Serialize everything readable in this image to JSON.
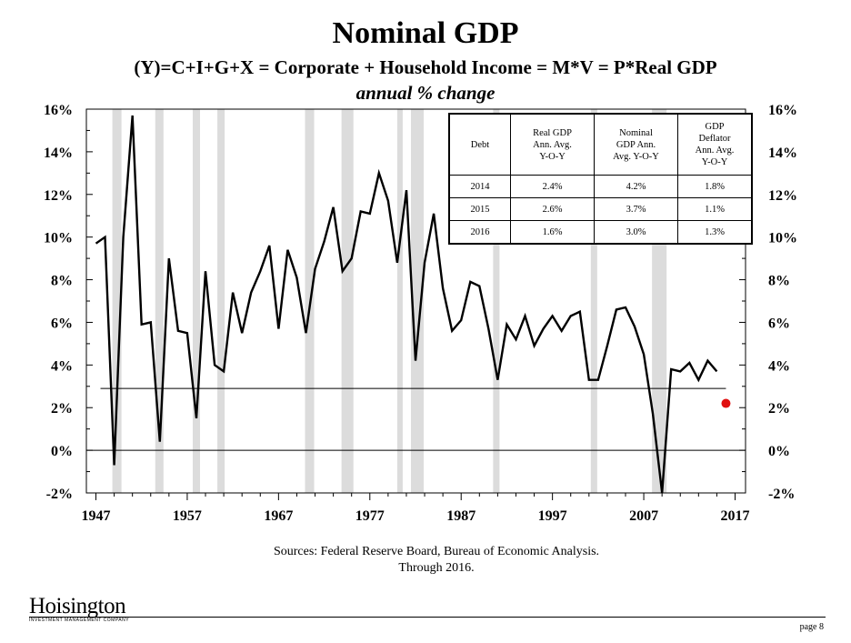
{
  "header": {
    "title": "Nominal GDP",
    "subtitle": "(Y)=C+I+G+X = Corporate + Household Income = M*V = P*Real GDP",
    "subtitle_units": "annual % change"
  },
  "colors": {
    "line": "#000000",
    "recession_shading": "#dcdcdc",
    "projection_dot": "#e01010"
  },
  "summary_table": {
    "headers": [
      "Debt",
      "Real GDP\nAnn. Avg.\nY-O-Y",
      "Nominal\nGDP Ann.\nAvg. Y-O-Y",
      "GDP\nDeflator\nAnn. Avg.\nY-O-Y"
    ],
    "rows": [
      [
        "2014",
        "2.4%",
        "4.2%",
        "1.8%"
      ],
      [
        "2015",
        "2.6%",
        "3.7%",
        "1.1%"
      ],
      [
        "2016",
        "1.6%",
        "3.0%",
        "1.3%"
      ]
    ]
  },
  "chart_data": {
    "type": "line",
    "title": "Nominal GDP",
    "subtitle": "(Y)=C+I+G+X = Corporate + Household Income = M*V = P*Real GDP",
    "ylabel": "annual % change",
    "xlabel": "",
    "xlim": [
      1947,
      2017
    ],
    "ylim": [
      -2,
      16
    ],
    "x_ticks": [
      "1947",
      "1957",
      "1967",
      "1977",
      "1987",
      "1997",
      "2007",
      "2017"
    ],
    "y_ticks": [
      "-2%",
      "0%",
      "2%",
      "4%",
      "6%",
      "8%",
      "10%",
      "12%",
      "14%",
      "16%"
    ],
    "y_axes": "both",
    "grid": false,
    "series": [
      {
        "x": [
          1947,
          1948,
          1949,
          1950,
          1951,
          1952,
          1953,
          1954,
          1955,
          1956,
          1957,
          1958,
          1959,
          1960,
          1961,
          1962,
          1963,
          1964,
          1965,
          1966,
          1967,
          1968,
          1969,
          1970,
          1971,
          1972,
          1973,
          1974,
          1975,
          1976,
          1977,
          1978,
          1979,
          1980,
          1981,
          1982,
          1983,
          1984,
          1985,
          1986,
          1987,
          1988,
          1989,
          1990,
          1991,
          1992,
          1993,
          1994,
          1995,
          1996,
          1997,
          1998,
          1999,
          2000,
          2001,
          2002,
          2003,
          2004,
          2005,
          2006,
          2007,
          2008,
          2009,
          2010,
          2011,
          2012,
          2013,
          2014,
          2015
        ],
        "y": [
          9.7,
          10.0,
          -0.7,
          10.0,
          15.7,
          5.9,
          6.0,
          0.4,
          9.0,
          5.6,
          5.5,
          1.5,
          8.4,
          4.0,
          3.7,
          7.4,
          5.5,
          7.4,
          8.4,
          9.6,
          5.7,
          9.4,
          8.1,
          5.5,
          8.5,
          9.8,
          11.4,
          8.4,
          9.0,
          11.2,
          11.1,
          13.0,
          11.7,
          8.8,
          12.2,
          4.2,
          8.8,
          11.1,
          7.6,
          5.6,
          6.1,
          7.9,
          7.7,
          5.7,
          3.3,
          5.9,
          5.2,
          6.3,
          4.9,
          5.7,
          6.3,
          5.6,
          6.3,
          6.5,
          3.3,
          3.3,
          4.9,
          6.6,
          6.7,
          5.8,
          4.5,
          1.7,
          -2.0,
          3.8,
          3.7,
          4.1,
          3.3,
          4.2,
          3.7
        ]
      }
    ],
    "projection_point": {
      "x": 2016,
      "y": 2.2
    },
    "reference_line": {
      "y": 2.9,
      "x_start": 1947.5,
      "x_end": 2016
    },
    "recessions": [
      [
        1948.8,
        1949.8
      ],
      [
        1953.5,
        1954.4
      ],
      [
        1957.6,
        1958.4
      ],
      [
        1960.3,
        1961.1
      ],
      [
        1969.9,
        1970.9
      ],
      [
        1973.9,
        1975.2
      ],
      [
        1980.0,
        1980.6
      ],
      [
        1981.5,
        1982.9
      ],
      [
        1990.5,
        1991.2
      ],
      [
        2001.2,
        2001.9
      ],
      [
        2007.9,
        2009.5
      ]
    ]
  },
  "sources": {
    "line1": "Sources: Federal Reserve Board, Bureau of Economic Analysis.",
    "line2": "Through 2016."
  },
  "logo": {
    "name": "Hoisington",
    "tagline": "INVESTMENT MANAGEMENT COMPANY"
  },
  "footer": {
    "page": "page 8"
  }
}
